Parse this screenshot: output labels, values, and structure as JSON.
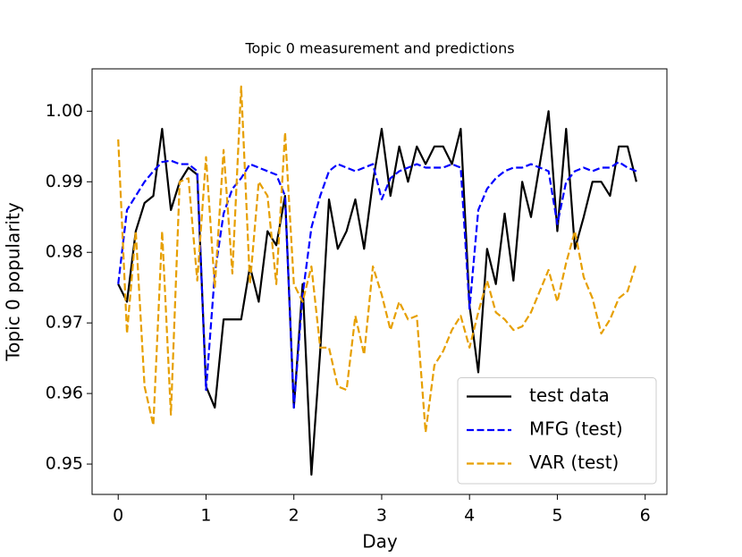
{
  "chart_data": {
    "type": "line",
    "title": "Topic 0 measurement and predictions",
    "x_label": "Day",
    "y_label": "Topic 0 popularity",
    "x": [
      0,
      0.1,
      0.2,
      0.3,
      0.4,
      0.5,
      0.6,
      0.7,
      0.8,
      0.9,
      1.0,
      1.1,
      1.2,
      1.3,
      1.4,
      1.5,
      1.6,
      1.7,
      1.8,
      1.9,
      2.0,
      2.1,
      2.2,
      2.3,
      2.4,
      2.5,
      2.6,
      2.7,
      2.8,
      2.9,
      3.0,
      3.1,
      3.2,
      3.3,
      3.4,
      3.5,
      3.6,
      3.7,
      3.8,
      3.9,
      4.0,
      4.1,
      4.2,
      4.3,
      4.4,
      4.5,
      4.6,
      4.7,
      4.8,
      4.9,
      5.0,
      5.1,
      5.2,
      5.3,
      5.4,
      5.5,
      5.6,
      5.7,
      5.8,
      5.9
    ],
    "series": [
      {
        "name": "test data",
        "color": "#000000",
        "dash": false,
        "values": [
          0.9755,
          0.973,
          0.983,
          0.987,
          0.988,
          0.9975,
          0.986,
          0.99,
          0.992,
          0.991,
          0.961,
          0.958,
          0.9705,
          0.9705,
          0.9705,
          0.978,
          0.973,
          0.983,
          0.981,
          0.988,
          0.958,
          0.9755,
          0.9485,
          0.966,
          0.9875,
          0.9805,
          0.983,
          0.9875,
          0.9805,
          0.99,
          0.9975,
          0.988,
          0.995,
          0.99,
          0.995,
          0.9925,
          0.995,
          0.995,
          0.9925,
          0.9975,
          0.9725,
          0.963,
          0.9805,
          0.9755,
          0.9855,
          0.976,
          0.99,
          0.985,
          0.9925,
          1.0,
          0.983,
          0.9975,
          0.9805,
          0.985,
          0.99,
          0.99,
          0.988,
          0.995,
          0.995,
          0.99
        ]
      },
      {
        "name": "MFG (test)",
        "color": "#0000ff",
        "dash": true,
        "values": [
          0.9755,
          0.986,
          0.988,
          0.99,
          0.9915,
          0.9928,
          0.993,
          0.9925,
          0.9925,
          0.9915,
          0.9605,
          0.977,
          0.9855,
          0.989,
          0.9905,
          0.9925,
          0.992,
          0.9915,
          0.991,
          0.988,
          0.958,
          0.974,
          0.9835,
          0.988,
          0.9915,
          0.9925,
          0.992,
          0.9915,
          0.992,
          0.9925,
          0.9875,
          0.9905,
          0.9915,
          0.992,
          0.9925,
          0.992,
          0.992,
          0.992,
          0.9925,
          0.992,
          0.972,
          0.986,
          0.989,
          0.9905,
          0.9915,
          0.992,
          0.992,
          0.9925,
          0.992,
          0.9915,
          0.984,
          0.99,
          0.9915,
          0.992,
          0.9915,
          0.992,
          0.992,
          0.9928,
          0.992,
          0.9915
        ]
      },
      {
        "name": "VAR (test)",
        "color": "#e69f00",
        "dash": true,
        "values": [
          0.996,
          0.9685,
          0.983,
          0.961,
          0.9555,
          0.983,
          0.957,
          0.99,
          0.9905,
          0.976,
          0.9935,
          0.975,
          0.9945,
          0.977,
          1.0035,
          0.9755,
          0.99,
          0.988,
          0.9755,
          0.997,
          0.9755,
          0.973,
          0.978,
          0.9665,
          0.9665,
          0.961,
          0.9605,
          0.971,
          0.9655,
          0.978,
          0.974,
          0.969,
          0.973,
          0.9705,
          0.971,
          0.9545,
          0.964,
          0.966,
          0.969,
          0.971,
          0.9665,
          0.9715,
          0.976,
          0.9715,
          0.9705,
          0.969,
          0.9695,
          0.9715,
          0.9745,
          0.9775,
          0.973,
          0.9785,
          0.983,
          0.9765,
          0.9735,
          0.9685,
          0.9705,
          0.9735,
          0.9745,
          0.9785
        ]
      }
    ],
    "xlim": [
      -0.2975,
      6.2475
    ],
    "ylim": [
      0.9457,
      1.006
    ],
    "xticks": [
      0,
      1,
      2,
      3,
      4,
      5,
      6
    ],
    "yticks": [
      0.95,
      0.96,
      0.97,
      0.98,
      0.99,
      {
        "value": 1.0,
        "label": "1.00"
      }
    ],
    "legend": "lower right"
  }
}
